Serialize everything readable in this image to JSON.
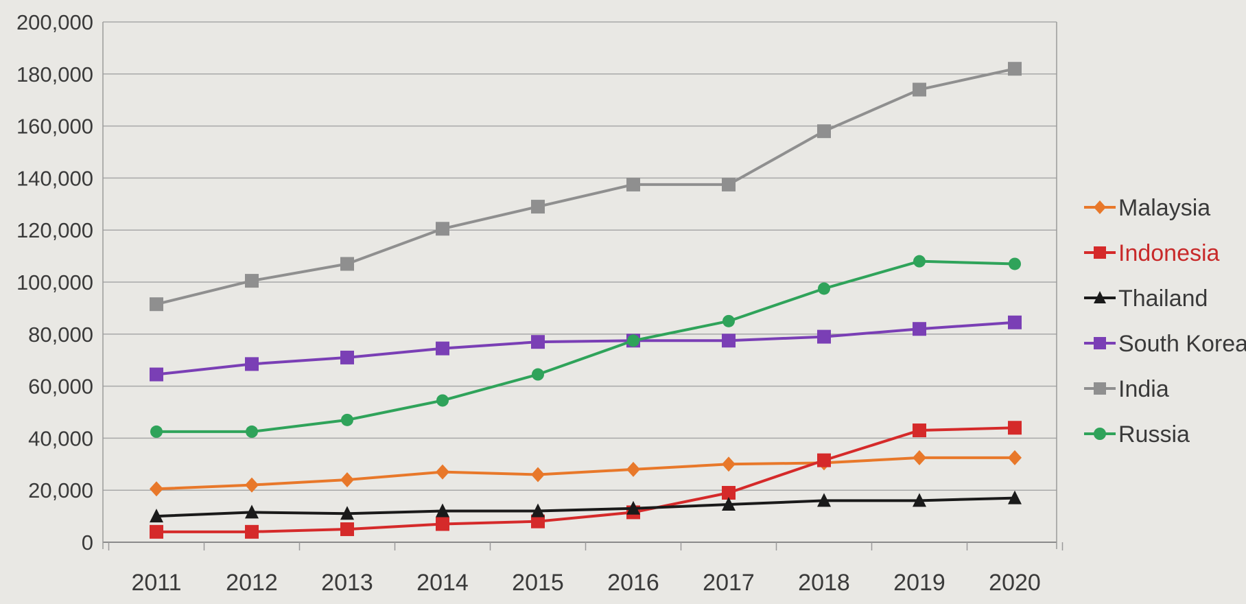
{
  "chart_data": {
    "type": "line",
    "title": "",
    "xlabel": "",
    "ylabel": "",
    "ylim": [
      0,
      200000
    ],
    "yticks": [
      0,
      20000,
      40000,
      60000,
      80000,
      100000,
      120000,
      140000,
      160000,
      180000,
      200000
    ],
    "ytick_labels": [
      "0",
      "20,000",
      "40,000",
      "60,000",
      "80,000",
      "100,000",
      "120,000",
      "140,000",
      "160,000",
      "180,000",
      "200,000"
    ],
    "x": [
      "2011",
      "2012",
      "2013",
      "2014",
      "2015",
      "2016",
      "2017",
      "2018",
      "2019",
      "2020"
    ],
    "grid": true,
    "legend_position": "right",
    "series": [
      {
        "name": "Malaysia",
        "color": "#e8782a",
        "marker": "diamond",
        "values": [
          20500,
          22000,
          24000,
          27000,
          26000,
          28000,
          30000,
          30500,
          32500,
          32500
        ]
      },
      {
        "name": "Indonesia",
        "color": "#d52a2a",
        "marker": "square",
        "values": [
          4000,
          4000,
          5000,
          7000,
          8000,
          11500,
          19000,
          31500,
          43000,
          44000
        ]
      },
      {
        "name": "Thailand",
        "color": "#1a1a1a",
        "marker": "triangle",
        "values": [
          10000,
          11500,
          11000,
          12000,
          12000,
          13000,
          14500,
          16000,
          16000,
          17000
        ]
      },
      {
        "name": "South Korea",
        "color": "#7a3fb5",
        "marker": "square",
        "values": [
          64500,
          68500,
          71000,
          74500,
          77000,
          77500,
          77500,
          79000,
          82000,
          84500
        ]
      },
      {
        "name": "India",
        "color": "#8f8f8f",
        "marker": "square",
        "values": [
          91500,
          100500,
          107000,
          120500,
          129000,
          137500,
          137500,
          158000,
          174000,
          182000
        ]
      },
      {
        "name": "Russia",
        "color": "#2fa35a",
        "marker": "circle",
        "values": [
          42500,
          42500,
          47000,
          54500,
          64500,
          77500,
          85000,
          97500,
          108000,
          107000
        ]
      }
    ]
  }
}
